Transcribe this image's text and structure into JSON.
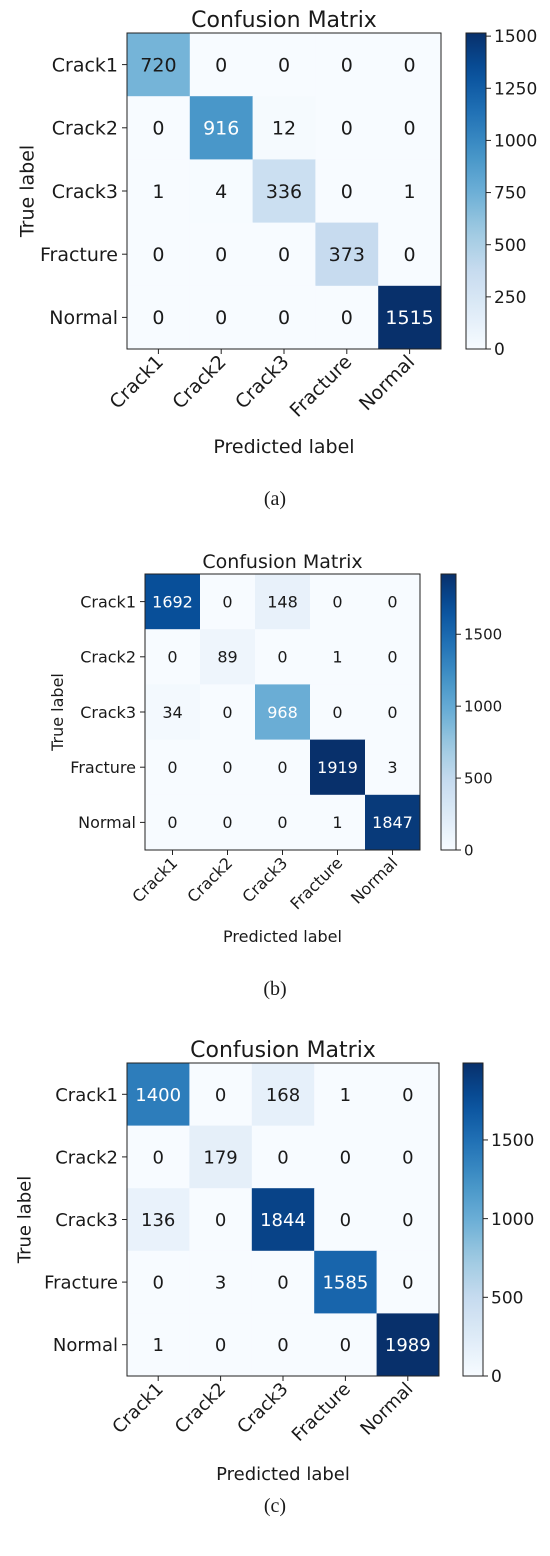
{
  "chart_data": [
    {
      "type": "heatmap",
      "title": "Confusion Matrix",
      "xlabel": "Predicted label",
      "ylabel": "True label",
      "x_categories": [
        "Crack1",
        "Crack2",
        "Crack3",
        "Fracture",
        "Normal"
      ],
      "y_categories": [
        "Crack1",
        "Crack2",
        "Crack3",
        "Fracture",
        "Normal"
      ],
      "values": [
        [
          720,
          0,
          0,
          0,
          0
        ],
        [
          0,
          916,
          12,
          0,
          0
        ],
        [
          1,
          4,
          336,
          0,
          1
        ],
        [
          0,
          0,
          0,
          373,
          0
        ],
        [
          0,
          0,
          0,
          0,
          1515
        ]
      ],
      "colorbar": {
        "min": 0,
        "max": 1515,
        "ticks": [
          0,
          250,
          500,
          750,
          1000,
          1250,
          1500
        ]
      },
      "colormap": "Blues",
      "caption": "(a)"
    },
    {
      "type": "heatmap",
      "title": "Confusion Matrix",
      "xlabel": "Predicted label",
      "ylabel": "True label",
      "x_categories": [
        "Crack1",
        "Crack2",
        "Crack3",
        "Fracture",
        "Normal"
      ],
      "y_categories": [
        "Crack1",
        "Crack2",
        "Crack3",
        "Fracture",
        "Normal"
      ],
      "values": [
        [
          1692,
          0,
          148,
          0,
          0
        ],
        [
          0,
          89,
          0,
          1,
          0
        ],
        [
          34,
          0,
          968,
          0,
          0
        ],
        [
          0,
          0,
          0,
          1919,
          3
        ],
        [
          0,
          0,
          0,
          1,
          1847
        ]
      ],
      "colorbar": {
        "min": 0,
        "max": 1919,
        "ticks": [
          0,
          500,
          1000,
          1500
        ]
      },
      "colormap": "Blues",
      "caption": "(b)"
    },
    {
      "type": "heatmap",
      "title": "Confusion Matrix",
      "xlabel": "Predicted label",
      "ylabel": "True label",
      "x_categories": [
        "Crack1",
        "Crack2",
        "Crack3",
        "Fracture",
        "Normal"
      ],
      "y_categories": [
        "Crack1",
        "Crack2",
        "Crack3",
        "Fracture",
        "Normal"
      ],
      "values": [
        [
          1400,
          0,
          168,
          1,
          0
        ],
        [
          0,
          179,
          0,
          0,
          0
        ],
        [
          136,
          0,
          1844,
          0,
          0
        ],
        [
          0,
          3,
          0,
          1585,
          0
        ],
        [
          1,
          0,
          0,
          0,
          1989
        ]
      ],
      "colorbar": {
        "min": 0,
        "max": 1989,
        "ticks": [
          0,
          500,
          1000,
          1500
        ]
      },
      "colormap": "Blues",
      "caption": "(c)"
    }
  ]
}
